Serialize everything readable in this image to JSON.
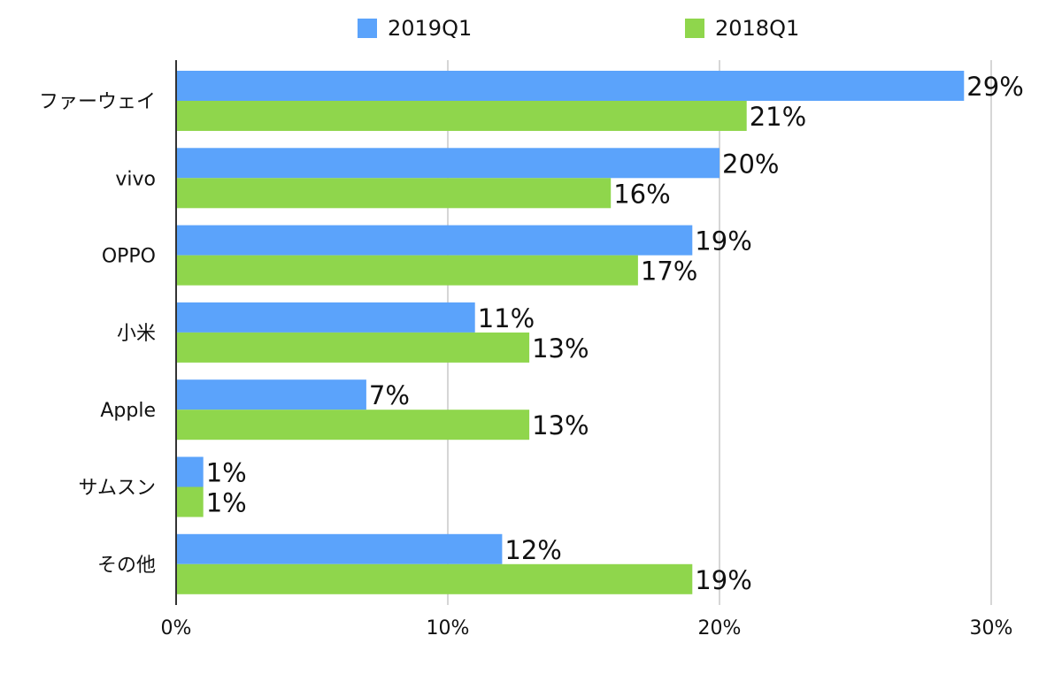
{
  "chart_data": {
    "type": "bar",
    "orientation": "horizontal",
    "categories": [
      "ファーウェイ",
      "vivo",
      "OPPO",
      "小米",
      "Apple",
      "サムスン",
      "その他"
    ],
    "series": [
      {
        "name": "2019Q1",
        "color": "#5ba3fb",
        "values": [
          29,
          20,
          19,
          11,
          7,
          1,
          12
        ]
      },
      {
        "name": "2018Q1",
        "color": "#8fd64c",
        "values": [
          21,
          16,
          17,
          13,
          13,
          1,
          19
        ]
      }
    ],
    "data_labels": {
      "2019Q1": [
        "29%",
        "20%",
        "19%",
        "11%",
        "7%",
        "1%",
        "12%"
      ],
      "2018Q1": [
        "21%",
        "16%",
        "17%",
        "13%",
        "13%",
        "1%",
        "19%"
      ]
    },
    "x_ticks": [
      0,
      10,
      20,
      30
    ],
    "x_tick_labels": [
      "0%",
      "10%",
      "20%",
      "30%"
    ],
    "xlim": [
      0,
      30
    ],
    "grid": "vertical",
    "legend_position": "top-center"
  }
}
